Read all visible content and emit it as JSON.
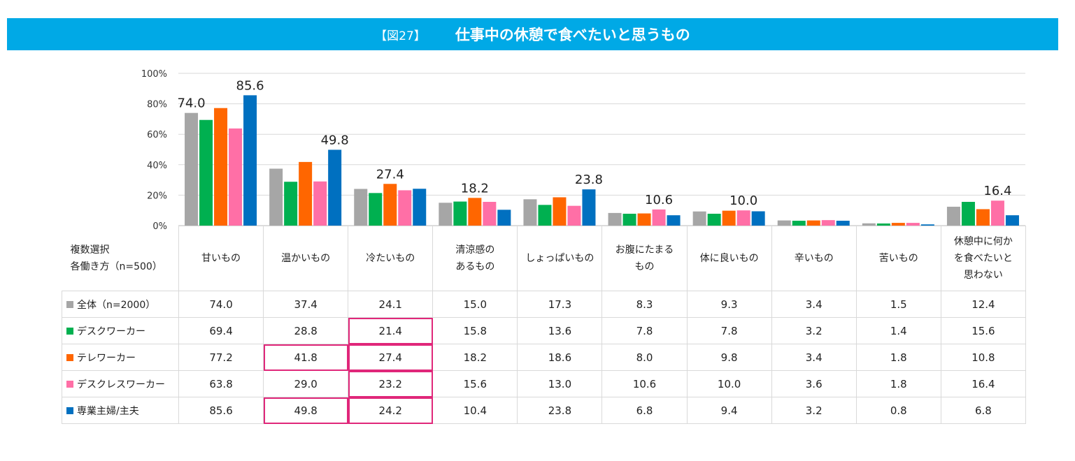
{
  "header": {
    "figure_no": "【図27】",
    "title": "仕事中の休憩で食べたいと思うもの"
  },
  "chart_data": {
    "type": "bar",
    "title": "仕事中の休憩で食べたいと思うもの",
    "ylim": [
      0,
      100
    ],
    "yticks": [
      "0%",
      "20%",
      "40%",
      "60%",
      "80%",
      "100%"
    ],
    "categories": [
      "甘いもの",
      "温かいもの",
      "冷たいもの",
      "清涼感のあるもの",
      "しょっぱいもの",
      "お腹にたまるもの",
      "体に良いもの",
      "辛いもの",
      "苦いもの",
      "休憩中に何かを食べたいと思わない"
    ],
    "category_lines": [
      [
        "甘いもの"
      ],
      [
        "温かいもの"
      ],
      [
        "冷たいもの"
      ],
      [
        "清涼感の",
        "あるもの"
      ],
      [
        "しょっぱいもの"
      ],
      [
        "お腹にたまる",
        "もの"
      ],
      [
        "体に良いもの"
      ],
      [
        "辛いもの"
      ],
      [
        "苦いもの"
      ],
      [
        "休憩中に何か",
        "を食べたいと",
        "思わない"
      ]
    ],
    "series": [
      {
        "name": "全体（n=2000）",
        "color": "#a6a6a6",
        "values": [
          74.0,
          37.4,
          24.1,
          15.0,
          17.3,
          8.3,
          9.3,
          3.4,
          1.5,
          12.4
        ]
      },
      {
        "name": "デスクワーカー",
        "color": "#00b050",
        "values": [
          69.4,
          28.8,
          21.4,
          15.8,
          13.6,
          7.8,
          7.8,
          3.2,
          1.4,
          15.6
        ]
      },
      {
        "name": "テレワーカー",
        "color": "#ff6600",
        "values": [
          77.2,
          41.8,
          27.4,
          18.2,
          18.6,
          8.0,
          9.8,
          3.4,
          1.8,
          10.8
        ]
      },
      {
        "name": "デスクレスワーカー",
        "color": "#ff6fa6",
        "values": [
          63.8,
          29.0,
          23.2,
          15.6,
          13.0,
          10.6,
          10.0,
          3.6,
          1.8,
          16.4
        ]
      },
      {
        "name": "専業主婦/主夫",
        "color": "#0070c0",
        "values": [
          85.6,
          49.8,
          24.2,
          10.4,
          23.8,
          6.8,
          9.4,
          3.2,
          0.8,
          6.8
        ]
      }
    ],
    "data_labels": [
      {
        "text": "74.0",
        "category": 0,
        "series": 0
      },
      {
        "text": "85.6",
        "category": 0,
        "series": 4
      },
      {
        "text": "49.8",
        "category": 1,
        "series": 4
      },
      {
        "text": "27.4",
        "category": 2,
        "series": 2
      },
      {
        "text": "18.2",
        "category": 3,
        "series": 2
      },
      {
        "text": "23.8",
        "category": 4,
        "series": 4
      },
      {
        "text": "10.6",
        "category": 5,
        "series": 3
      },
      {
        "text": "10.0",
        "category": 6,
        "series": 3
      },
      {
        "text": "16.4",
        "category": 9,
        "series": 3
      }
    ],
    "highlighted_cells": [
      {
        "series": 1,
        "category": 2
      },
      {
        "series": 2,
        "category": 1
      },
      {
        "series": 2,
        "category": 2
      },
      {
        "series": 3,
        "category": 2
      },
      {
        "series": 4,
        "category": 1
      },
      {
        "series": 4,
        "category": 2
      }
    ]
  },
  "table": {
    "corner_line1": "複数選択",
    "corner_line2": "各働き方（n=500）"
  }
}
